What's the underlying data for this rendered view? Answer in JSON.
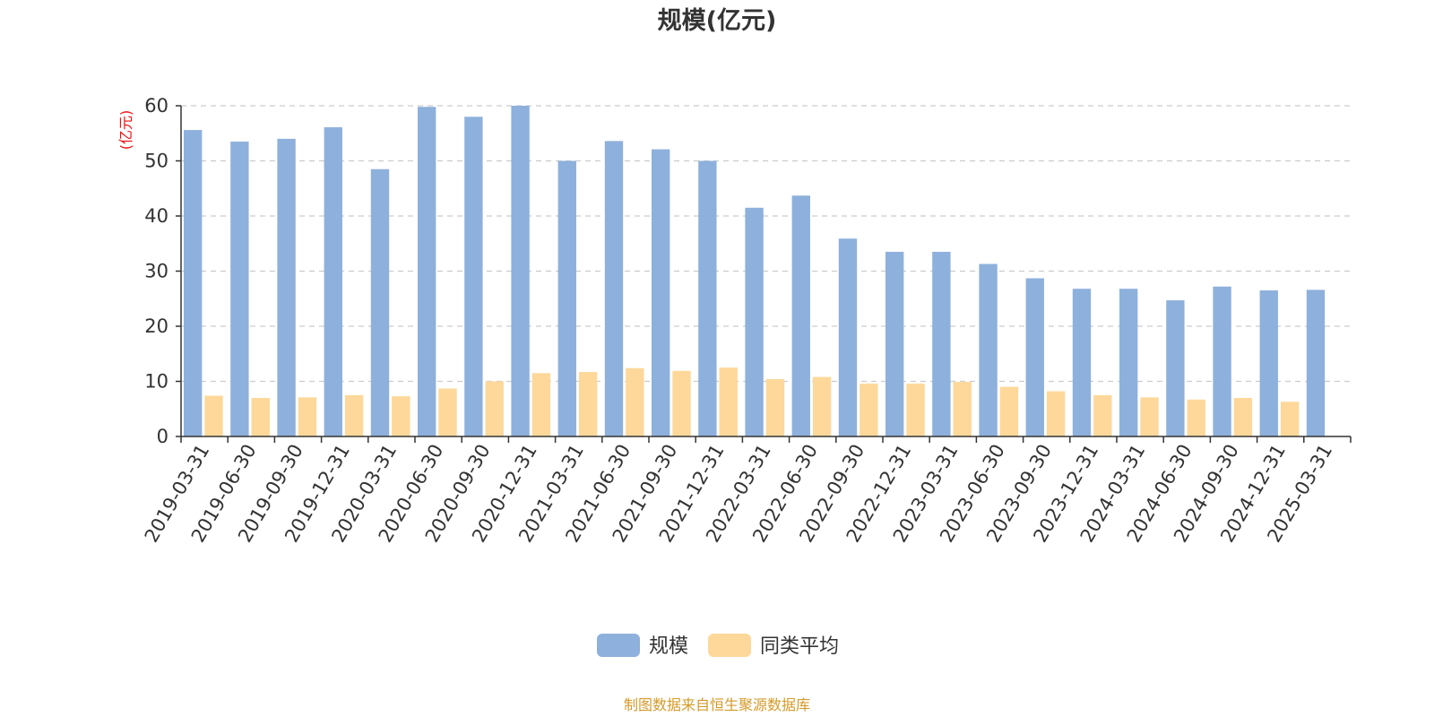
{
  "chart_data": {
    "type": "bar",
    "title": "规模(亿元)",
    "ylabel": "(亿元)",
    "xlabel": "",
    "ylim": [
      0,
      60
    ],
    "yticks": [
      0,
      10,
      20,
      30,
      40,
      50,
      60
    ],
    "grid": true,
    "legend_position": "bottom",
    "categories": [
      "2019-03-31",
      "2019-06-30",
      "2019-09-30",
      "2019-12-31",
      "2020-03-31",
      "2020-06-30",
      "2020-09-30",
      "2020-12-31",
      "2021-03-31",
      "2021-06-30",
      "2021-09-30",
      "2021-12-31",
      "2022-03-31",
      "2022-06-30",
      "2022-09-30",
      "2022-12-31",
      "2023-03-31",
      "2023-06-30",
      "2023-09-30",
      "2023-12-31",
      "2024-03-31",
      "2024-06-30",
      "2024-09-30",
      "2024-12-31",
      "2025-03-31"
    ],
    "series": [
      {
        "name": "规模",
        "color": "#8eb0dc",
        "values": [
          55.6,
          53.5,
          54.0,
          56.1,
          48.5,
          59.8,
          58.0,
          60.0,
          50.0,
          53.6,
          52.1,
          50.0,
          41.5,
          43.7,
          35.9,
          33.5,
          33.5,
          31.3,
          28.7,
          26.8,
          26.8,
          24.7,
          27.2,
          26.5,
          26.6
        ]
      },
      {
        "name": "同类平均",
        "color": "#fdd89a",
        "values": [
          7.4,
          7.0,
          7.1,
          7.5,
          7.3,
          8.7,
          10.0,
          11.5,
          11.7,
          12.4,
          11.9,
          12.5,
          10.4,
          10.8,
          9.6,
          9.6,
          9.9,
          9.0,
          8.2,
          7.5,
          7.1,
          6.7,
          7.0,
          6.3,
          null
        ]
      }
    ],
    "source": "制图数据来自恒生聚源数据库"
  }
}
